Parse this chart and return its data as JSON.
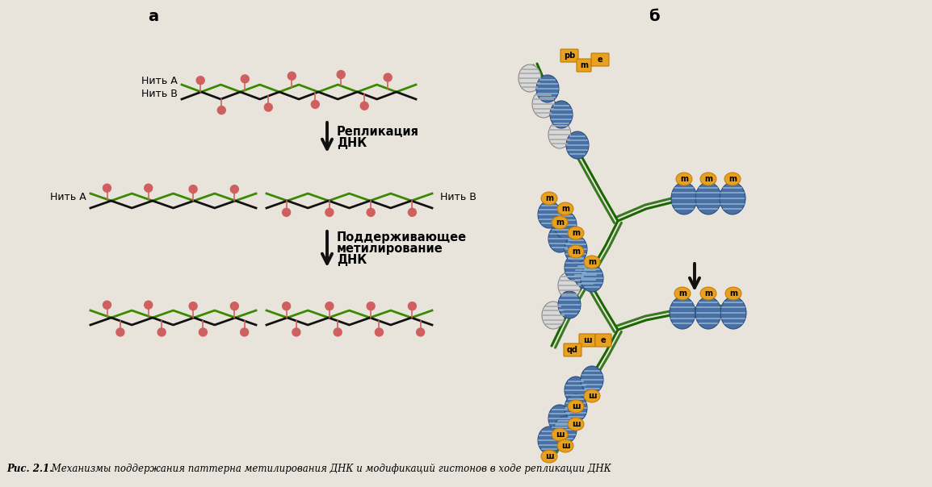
{
  "bg_color": "#e8e4dc",
  "title_a": "а",
  "title_b": "б",
  "arrow1_label_line1": "Репликация",
  "arrow1_label_line2": "ДНК",
  "arrow2_label_line1": "Поддерживающее",
  "arrow2_label_line2": "метилирование",
  "arrow2_label_line3": "ДНК",
  "strand_a_label": "Нить А",
  "strand_b_label": "Нить В",
  "strand_b2_label": "Нить В",
  "caption_bold": "Рис. 2.1.",
  "caption_rest": " Механизмы поддержания паттерна метилирования ДНК и модификаций гистонов в ходе репликации ДНК",
  "green_color": "#3a8a00",
  "black_color": "#111111",
  "methyl_color": "#d06060",
  "methyl_stem_color": "#d06060",
  "histone_blue_fill": "#4a6fa5",
  "histone_blue_stripe": "#89b0d0",
  "histone_white_fill": "#d8d8d8",
  "histone_white_stripe": "#aaaaaa",
  "histone_border": "#2a4f85",
  "marker_gold": "#e8a020",
  "marker_text": "#111111",
  "dna_line_color": "#1a6600",
  "arrow_color": "#111111"
}
